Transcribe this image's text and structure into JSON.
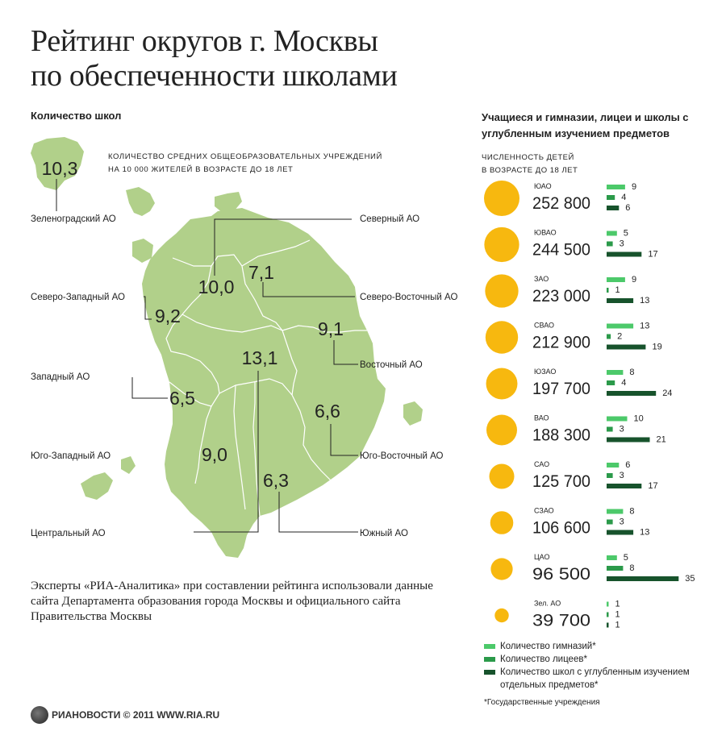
{
  "title": {
    "line1": "Рейтинг округов г. Москвы",
    "line2": "по обеспеченности школами"
  },
  "map_section": {
    "title": "Количество школ",
    "note_line1": "Количество средних общеобразовательных учреждений",
    "note_line2": "на 10 000 жителей в возрасте до 18 лет",
    "districts": [
      {
        "name": "Зеленоградский АО",
        "value": "10,3"
      },
      {
        "name": "Северный АО",
        "value": "10,0"
      },
      {
        "name": "Северо-Восточный АО",
        "value": "7,1"
      },
      {
        "name": "Северо-Западный АО",
        "value": "9,2"
      },
      {
        "name": "Восточный АО",
        "value": "9,1"
      },
      {
        "name": "Центральный АО",
        "value": "13,1"
      },
      {
        "name": "Западный АО",
        "value": "6,5"
      },
      {
        "name": "Юго-Восточный АО",
        "value": "6,6"
      },
      {
        "name": "Юго-Западный АО",
        "value": "9,0"
      },
      {
        "name": "Южный АО",
        "value": "6,3"
      }
    ]
  },
  "footer_text": "Эксперты «РИА-Аналитика»  при составлении рейтинга  использовали данные сайта Департамента образования города Москвы и официального сайта Правительства Москвы",
  "chart_data": {
    "type": "bar",
    "title": "Учащиеся и гимназии, лицеи и школы с углубленным изучением предметов",
    "children_label_line1": "Численность детей",
    "children_label_line2": "в возрасте до 18 лет",
    "categories": [
      "ЮАО",
      "ЮВАО",
      "ЗАО",
      "СВАО",
      "ЮЗАО",
      "ВАО",
      "САО",
      "СЗАО",
      "ЦАО",
      "Зел. АО"
    ],
    "children": [
      252800,
      244500,
      223000,
      212900,
      197700,
      188300,
      125700,
      106600,
      96500,
      39700
    ],
    "children_display": [
      "252 800",
      "244 500",
      "223 000",
      "212 900",
      "197 700",
      "188 300",
      "125 700",
      "106 600",
      "96 500",
      "39 700"
    ],
    "series": [
      {
        "name": "Количество гимназий*",
        "values": [
          9,
          5,
          9,
          13,
          8,
          10,
          6,
          8,
          5,
          1
        ]
      },
      {
        "name": "Количество лицеев*",
        "values": [
          4,
          3,
          1,
          2,
          4,
          3,
          3,
          3,
          8,
          1
        ]
      },
      {
        "name": "Количество школ с углубленным изучением отдельных предметов*",
        "values": [
          6,
          17,
          13,
          19,
          24,
          21,
          17,
          13,
          35,
          1
        ]
      }
    ]
  },
  "colors": {
    "map_fill": "#b1d08a",
    "circle": "#f7b80f",
    "gymnasium": "#4cc96a",
    "lyceum": "#2b9a4a",
    "school": "#17532c"
  },
  "footnote": "*Государственные учреждения",
  "logo": {
    "text": "РИАНОВОСТИ © 2011 WWW.RIA.RU"
  }
}
